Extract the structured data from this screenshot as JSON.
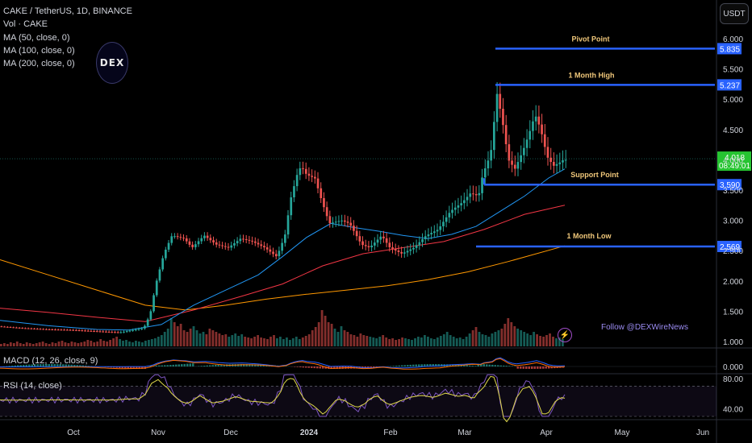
{
  "legend": {
    "symbol": "CAKE / TetherUS, 1D, BINANCE",
    "vol": "Vol · CAKE",
    "ma50": "MA (50, close, 0)",
    "ma100": "MA (100, close, 0)",
    "ma200": "MA (200, close, 0)"
  },
  "currency_button": "USDT",
  "logo_text": "DEX",
  "follow_text": "Follow @DEXWireNews",
  "macd_label": "MACD (12, 26, close, 9)",
  "rsi_label": "RSI (14, close)",
  "colors": {
    "up": "#26a69a",
    "down": "#ef5350",
    "level": "#2962ff",
    "ma50": "#2196f3",
    "ma100": "#f23645",
    "ma200": "#ff9800",
    "label_text": "#f0c77a"
  },
  "chart_data": [
    {
      "type": "candlestick",
      "title": "CAKE / TetherUS, 1D, BINANCE",
      "x_ticks": [
        "Oct",
        "Nov",
        "Dec",
        "2024",
        "Feb",
        "Mar",
        "Apr",
        "May",
        "Jun"
      ],
      "y_ticks": [
        "6.000",
        "5.500",
        "5.000",
        "4.500",
        "4.000",
        "3.500",
        "3.000",
        "2.500",
        "2.000",
        "1.500",
        "1.000"
      ],
      "ylim": [
        1.0,
        6.0
      ],
      "current_price": "4.018",
      "countdown": "08:49:01",
      "levels": [
        {
          "name": "Pivot Point",
          "value": 5.835,
          "label": "5.835"
        },
        {
          "name": "1 Month High",
          "value": 5.237,
          "label": "5.237"
        },
        {
          "name": "Support Point",
          "value": 3.59,
          "label": "3.590"
        },
        {
          "name": "1 Month Low",
          "value": 2.569,
          "label": "2.569"
        }
      ],
      "price_path": [
        [
          0,
          1.25
        ],
        [
          30,
          1.22
        ],
        [
          60,
          1.2
        ],
        [
          90,
          1.19
        ],
        [
          120,
          1.17
        ],
        [
          150,
          1.15
        ],
        [
          180,
          1.22
        ],
        [
          188,
          1.45
        ],
        [
          195,
          1.95
        ],
        [
          205,
          2.45
        ],
        [
          215,
          2.75
        ],
        [
          230,
          2.7
        ],
        [
          240,
          2.55
        ],
        [
          255,
          2.75
        ],
        [
          270,
          2.6
        ],
        [
          285,
          2.55
        ],
        [
          300,
          2.7
        ],
        [
          315,
          2.65
        ],
        [
          330,
          2.55
        ],
        [
          345,
          2.4
        ],
        [
          355,
          2.75
        ],
        [
          362,
          3.35
        ],
        [
          370,
          3.75
        ],
        [
          375,
          3.9
        ],
        [
          382,
          3.75
        ],
        [
          392,
          3.7
        ],
        [
          400,
          3.35
        ],
        [
          410,
          2.95
        ],
        [
          425,
          3.0
        ],
        [
          435,
          2.95
        ],
        [
          450,
          2.6
        ],
        [
          460,
          2.55
        ],
        [
          475,
          2.75
        ],
        [
          485,
          2.55
        ],
        [
          500,
          2.45
        ],
        [
          515,
          2.55
        ],
        [
          530,
          2.75
        ],
        [
          545,
          2.85
        ],
        [
          560,
          3.15
        ],
        [
          575,
          3.3
        ],
        [
          585,
          3.45
        ],
        [
          595,
          3.4
        ],
        [
          600,
          3.75
        ],
        [
          610,
          4.1
        ],
        [
          618,
          5.1
        ],
        [
          625,
          4.6
        ],
        [
          632,
          4.0
        ],
        [
          640,
          3.85
        ],
        [
          650,
          4.15
        ],
        [
          658,
          4.45
        ],
        [
          665,
          4.75
        ],
        [
          672,
          4.5
        ],
        [
          680,
          4.05
        ],
        [
          688,
          3.9
        ],
        [
          695,
          3.95
        ],
        [
          700,
          4.0
        ]
      ],
      "ma50": [
        [
          0,
          1.35
        ],
        [
          60,
          1.26
        ],
        [
          120,
          1.2
        ],
        [
          160,
          1.19
        ],
        [
          200,
          1.28
        ],
        [
          240,
          1.6
        ],
        [
          280,
          1.85
        ],
        [
          320,
          2.1
        ],
        [
          350,
          2.4
        ],
        [
          380,
          2.72
        ],
        [
          410,
          2.95
        ],
        [
          440,
          2.88
        ],
        [
          470,
          2.82
        ],
        [
          500,
          2.75
        ],
        [
          530,
          2.7
        ],
        [
          560,
          2.77
        ],
        [
          590,
          2.9
        ],
        [
          620,
          3.15
        ],
        [
          650,
          3.4
        ],
        [
          680,
          3.7
        ],
        [
          700,
          3.85
        ]
      ],
      "ma100": [
        [
          0,
          1.55
        ],
        [
          60,
          1.48
        ],
        [
          120,
          1.4
        ],
        [
          180,
          1.33
        ],
        [
          240,
          1.52
        ],
        [
          300,
          1.75
        ],
        [
          350,
          1.95
        ],
        [
          400,
          2.25
        ],
        [
          450,
          2.45
        ],
        [
          500,
          2.55
        ],
        [
          550,
          2.65
        ],
        [
          600,
          2.85
        ],
        [
          650,
          3.1
        ],
        [
          700,
          3.25
        ]
      ],
      "ma200": [
        [
          0,
          2.35
        ],
        [
          60,
          2.1
        ],
        [
          120,
          1.85
        ],
        [
          180,
          1.6
        ],
        [
          230,
          1.52
        ],
        [
          280,
          1.6
        ],
        [
          330,
          1.7
        ],
        [
          380,
          1.78
        ],
        [
          430,
          1.85
        ],
        [
          480,
          1.92
        ],
        [
          530,
          2.02
        ],
        [
          580,
          2.15
        ],
        [
          630,
          2.32
        ],
        [
          700,
          2.58
        ]
      ]
    },
    {
      "type": "bar",
      "title": "Vol · CAKE",
      "values": [
        3,
        4,
        3,
        5,
        4,
        6,
        4,
        3,
        5,
        4,
        3,
        4,
        5,
        6,
        4,
        3,
        5,
        4,
        6,
        7,
        5,
        4,
        6,
        5,
        4,
        5,
        6,
        8,
        7,
        5,
        6,
        9,
        7,
        6,
        8,
        10,
        12,
        9,
        7,
        8,
        6,
        5,
        7,
        6,
        5,
        7,
        8,
        9,
        10,
        12,
        14,
        18,
        22,
        35,
        30,
        25,
        28,
        20,
        18,
        22,
        25,
        20,
        16,
        18,
        15,
        22,
        20,
        18,
        16,
        14,
        15,
        12,
        14,
        16,
        13,
        15,
        12,
        11,
        10,
        12,
        14,
        11,
        10,
        9,
        12,
        14,
        10,
        12,
        9,
        11,
        8,
        10,
        12,
        9,
        11,
        13,
        15,
        20,
        24,
        30,
        45,
        38,
        30,
        28,
        22,
        18,
        25,
        20,
        18,
        15,
        14,
        12,
        16,
        14,
        13,
        12,
        11,
        10,
        12,
        14,
        11,
        9,
        10,
        8,
        9,
        11,
        10,
        9,
        8,
        10,
        12,
        11,
        14,
        12,
        10,
        9,
        11,
        13,
        15,
        18,
        14,
        12,
        10,
        11,
        9,
        12,
        16,
        20,
        24,
        18,
        15,
        14,
        12,
        16,
        18,
        20,
        22,
        28,
        35,
        30,
        25,
        22,
        20,
        18,
        16,
        14,
        18,
        15,
        13,
        12,
        14,
        16,
        12,
        10,
        11,
        9
      ]
    },
    {
      "type": "line",
      "title": "MACD (12, 26, close, 9)",
      "y_ticks": [
        "0.000"
      ]
    },
    {
      "type": "line",
      "title": "RSI (14, close)",
      "y_ticks": [
        "80.00",
        "40.00"
      ]
    }
  ]
}
